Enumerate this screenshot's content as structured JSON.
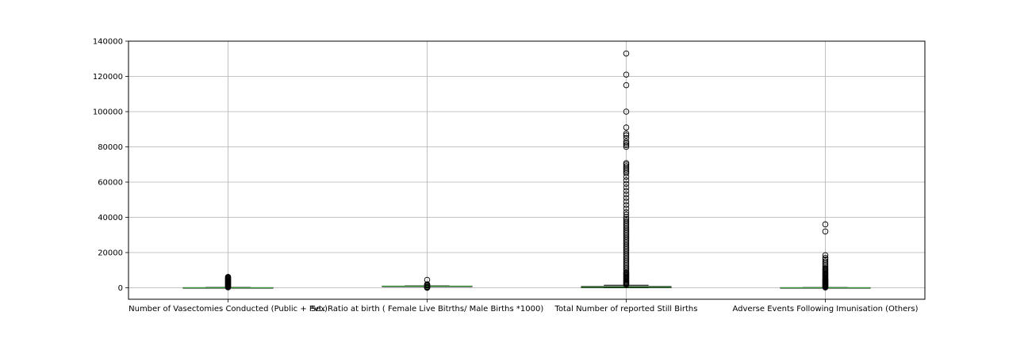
{
  "chart_data": {
    "type": "boxplot",
    "categories": [
      "Number of Vasectomies Conducted (Public + Pvt.)",
      "Sex Ratio at birth ( Female Live Bitrths/ Male Births *1000)",
      "Total Number of reported Still Births",
      "Adverse Events Following Imunisation (Others)"
    ],
    "yticks": [
      0,
      20000,
      40000,
      60000,
      80000,
      100000,
      120000,
      140000
    ],
    "ytick_labels": [
      "0",
      "20000",
      "40000",
      "60000",
      "80000",
      "100000",
      "120000",
      "140000"
    ],
    "ylim": [
      -6500,
      140000
    ],
    "grid": true,
    "colors": {
      "median": "#2ca02c",
      "box": "#000000",
      "grid": "#b0b0b0",
      "whisker": "#000000"
    },
    "boxes": [
      {
        "q1": 0,
        "median": 10,
        "q3": 80,
        "whisker_low": 0,
        "whisker_high": 200,
        "outliers": [
          250,
          500,
          800,
          1100,
          1400,
          1700,
          2000,
          2300,
          2600,
          2900,
          3200,
          3500,
          3800,
          4100,
          4400,
          4700,
          5000,
          5300,
          5600,
          5900,
          6200
        ]
      },
      {
        "q1": 880,
        "median": 920,
        "q3": 960,
        "whisker_low": 780,
        "whisker_high": 1060,
        "outliers": [
          0,
          100,
          200,
          300,
          400,
          500,
          600,
          1200,
          1400,
          1700,
          2000,
          4500
        ]
      },
      {
        "q1": 100,
        "median": 350,
        "q3": 700,
        "whisker_low": 0,
        "whisker_high": 1500,
        "outliers": [
          1800,
          2200,
          2600,
          3000,
          3500,
          4000,
          4500,
          5000,
          5500,
          6000,
          6500,
          7000,
          7500,
          8000,
          8500,
          9000,
          10000,
          11000,
          12000,
          13000,
          14000,
          15000,
          16000,
          17000,
          18000,
          19000,
          20000,
          21000,
          22000,
          23000,
          24000,
          25000,
          26000,
          27000,
          28000,
          29000,
          30000,
          31000,
          32000,
          33000,
          34000,
          35000,
          36000,
          37000,
          38000,
          39000,
          40000,
          41500,
          43000,
          45000,
          47000,
          49000,
          51000,
          53000,
          55000,
          57000,
          59000,
          61000,
          63000,
          65000,
          66000,
          67000,
          68000,
          69000,
          70000,
          70800,
          80000,
          81000,
          82000,
          83000,
          85000,
          86500,
          87500,
          91000,
          100000,
          115000,
          121000,
          133000
        ]
      },
      {
        "q1": 0,
        "median": 20,
        "q3": 80,
        "whisker_low": 0,
        "whisker_high": 150,
        "outliers": [
          200,
          400,
          700,
          1000,
          1300,
          1600,
          1900,
          2200,
          2500,
          2800,
          3100,
          3400,
          3700,
          4000,
          4300,
          4600,
          5000,
          5500,
          6000,
          6500,
          7000,
          7500,
          8000,
          8500,
          9000,
          9500,
          10000,
          10500,
          11000,
          12000,
          13000,
          14000,
          15000,
          16000,
          17000,
          18500,
          32000,
          36000
        ]
      }
    ]
  }
}
